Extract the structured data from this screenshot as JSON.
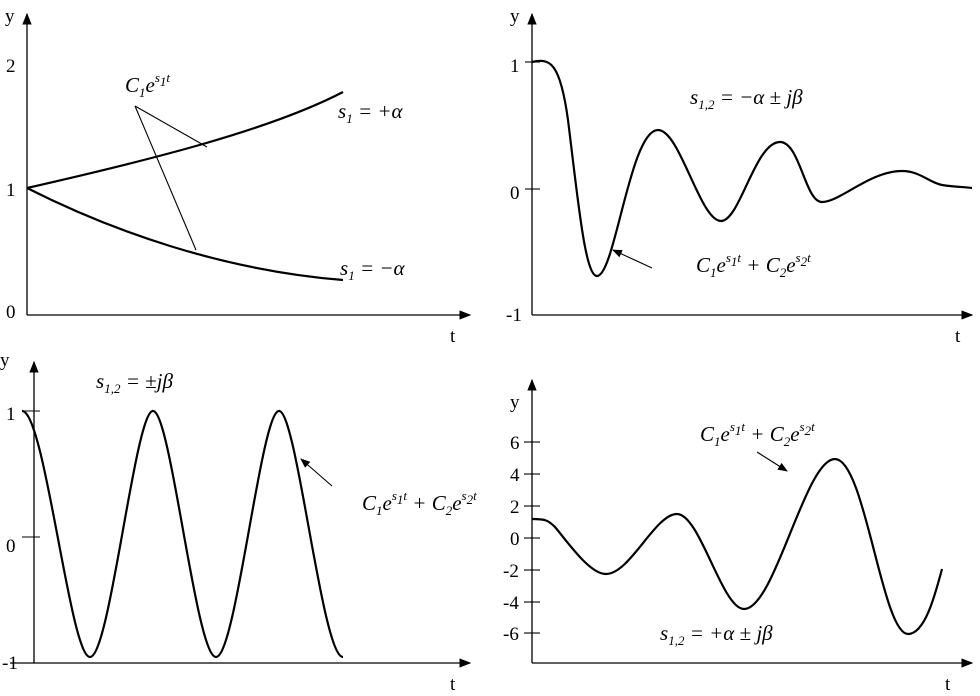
{
  "chart_data": [
    {
      "type": "line",
      "xlabel": "t",
      "ylabel": "y",
      "yticks": [
        "2",
        "1",
        "0"
      ],
      "ylim": [
        0,
        2
      ],
      "series": [
        {
          "name": "s₁ = +α",
          "kind": "growth",
          "x": [
            0,
            0.5,
            1
          ],
          "values": [
            1.0,
            1.3,
            1.72
          ]
        },
        {
          "name": "s₁ = −α",
          "kind": "decay",
          "x": [
            0,
            0.5,
            1
          ],
          "values": [
            1.0,
            0.55,
            0.28
          ]
        }
      ],
      "annotation": "C₁e^(s₁t)"
    },
    {
      "type": "line",
      "xlabel": "t",
      "ylabel": "y",
      "yticks": [
        "1",
        "0",
        "-1"
      ],
      "ylim": [
        -1,
        1
      ],
      "title": "s₁,₂ = −α ± jβ",
      "series": [
        {
          "kind": "damped",
          "peaks": [
            1.0,
            -0.68,
            0.46,
            -0.25,
            0.38,
            -0.08,
            0.15,
            0.02
          ]
        }
      ],
      "annotation": "C₁e^(s₁t) + C₂e^(s₂t)"
    },
    {
      "type": "line",
      "xlabel": "t",
      "ylabel": "y",
      "yticks": [
        "1",
        "0",
        "-1"
      ],
      "ylim": [
        -1,
        1
      ],
      "title": "s₁,₂ = ±jβ",
      "series": [
        {
          "kind": "sustained",
          "peaks": [
            1.0,
            -0.95,
            1.0,
            -0.95,
            1.0,
            -0.95
          ]
        }
      ],
      "annotation": "C₁e^(s₁t) + C₂e^(s₂t)"
    },
    {
      "type": "line",
      "xlabel": "t",
      "ylabel": "y",
      "yticks": [
        "6",
        "4",
        "2",
        "0",
        "-2",
        "-4",
        "-6"
      ],
      "ylim": [
        -6,
        6
      ],
      "title": "s₁,₂ = +α ± jβ",
      "series": [
        {
          "kind": "growing",
          "peaks": [
            1.2,
            -2.3,
            1.5,
            -4.5,
            5.0,
            -6.1,
            -2.0
          ]
        }
      ],
      "annotation": "C₁e^(s₁t) + C₂e^(s₂t)"
    }
  ]
}
